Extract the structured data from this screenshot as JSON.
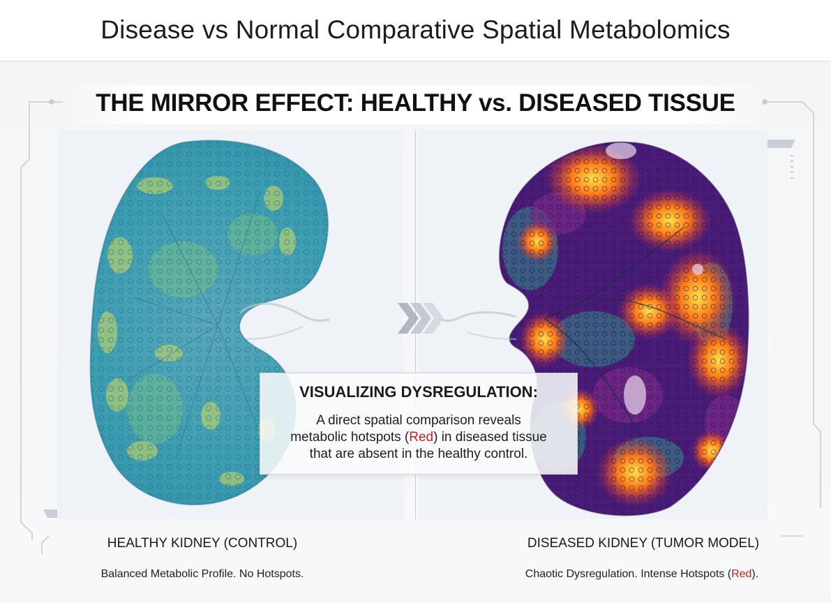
{
  "page_title": "Disease vs Normal Comparative Spatial Metabolomics",
  "banner_title": "THE MIRROR EFFECT: HEALTHY vs. DISEASED TISSUE",
  "info_box": {
    "heading": "VISUALIZING DYSREGULATION:",
    "line1": "A direct spatial comparison reveals",
    "line2_before": "metabolic hotspots (",
    "line2_highlight": "Red",
    "line2_after": ") in diseased tissue",
    "line3": "that are absent in the healthy control."
  },
  "left_panel": {
    "label": "HEALTHY KIDNEY (CONTROL)",
    "caption": "Balanced Metabolic Profile. No Hotspots."
  },
  "right_panel": {
    "label": "DISEASED KIDNEY (TUMOR MODEL)",
    "caption_before": "Chaotic Dysregulation. Intense Hotspots (",
    "caption_highlight": "Red",
    "caption_after": ")."
  },
  "colors": {
    "healthy_base": "#3fa3b4",
    "healthy_highlight": "#d9dd5a",
    "diseased_base": "#4a1c7a",
    "diseased_hotspot": "#ff5a12",
    "diseased_core": "#ffe24a",
    "highlight_text": "#c8231f"
  }
}
